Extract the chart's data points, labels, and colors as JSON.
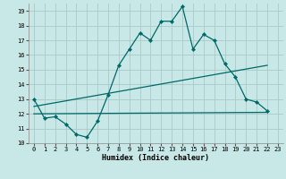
{
  "xlabel": "Humidex (Indice chaleur)",
  "background_color": "#c8e8e8",
  "grid_color": "#aacaca",
  "line_color": "#006868",
  "xlim": [
    -0.5,
    23.5
  ],
  "ylim": [
    10,
    19.5
  ],
  "yticks": [
    10,
    11,
    12,
    13,
    14,
    15,
    16,
    17,
    18,
    19
  ],
  "xticks": [
    0,
    1,
    2,
    3,
    4,
    5,
    6,
    7,
    8,
    9,
    10,
    11,
    12,
    13,
    14,
    15,
    16,
    17,
    18,
    19,
    20,
    21,
    22,
    23
  ],
  "line1_x": [
    0,
    1,
    2,
    3,
    4,
    5,
    6,
    7,
    8,
    9,
    10,
    11,
    12,
    13,
    14,
    15,
    16,
    17,
    18,
    19,
    20,
    21,
    22
  ],
  "line1_y": [
    13.0,
    11.7,
    11.8,
    11.3,
    10.6,
    10.4,
    11.5,
    13.3,
    15.3,
    16.4,
    17.5,
    17.0,
    18.3,
    18.3,
    19.3,
    16.4,
    17.4,
    17.0,
    15.4,
    14.5,
    13.0,
    12.8,
    12.2
  ],
  "line2_x": [
    0,
    22
  ],
  "line2_y": [
    12.0,
    12.1
  ],
  "line3_x": [
    0,
    22
  ],
  "line3_y": [
    12.5,
    15.3
  ]
}
